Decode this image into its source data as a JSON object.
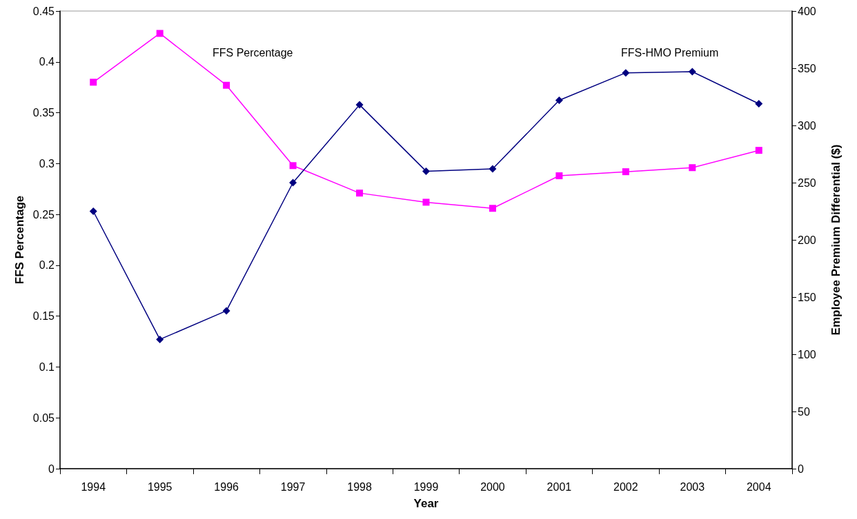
{
  "chart_data": {
    "type": "line",
    "xlabel": "Year",
    "ylabel": "FFS Percentage",
    "y2label": "Employee Premium Differential ($)",
    "categories": [
      "1994",
      "1995",
      "1996",
      "1997",
      "1998",
      "1999",
      "2000",
      "2001",
      "2002",
      "2003",
      "2004"
    ],
    "series": [
      {
        "name": "FFS Percentage",
        "color": "#ff00ff",
        "marker": "square",
        "values": [
          0.38,
          0.428,
          0.377,
          0.298,
          0.271,
          0.262,
          0.256,
          0.288,
          0.292,
          0.296,
          0.313
        ]
      },
      {
        "name": "FFS-HMO Premium",
        "color": "#000080",
        "marker": "diamond",
        "axis": "y2",
        "values": [
          225,
          113,
          138,
          250,
          318,
          260,
          262,
          322,
          346,
          347,
          319
        ]
      }
    ],
    "ylim": [
      0,
      0.45
    ],
    "yticks": [
      0,
      0.05,
      0.1,
      0.15,
      0.2,
      0.25,
      0.3,
      0.35,
      0.4,
      0.45
    ],
    "y2lim": [
      0,
      400
    ],
    "y2ticks": [
      0,
      50,
      100,
      150,
      200,
      250,
      300,
      350,
      400
    ],
    "legend": false
  }
}
